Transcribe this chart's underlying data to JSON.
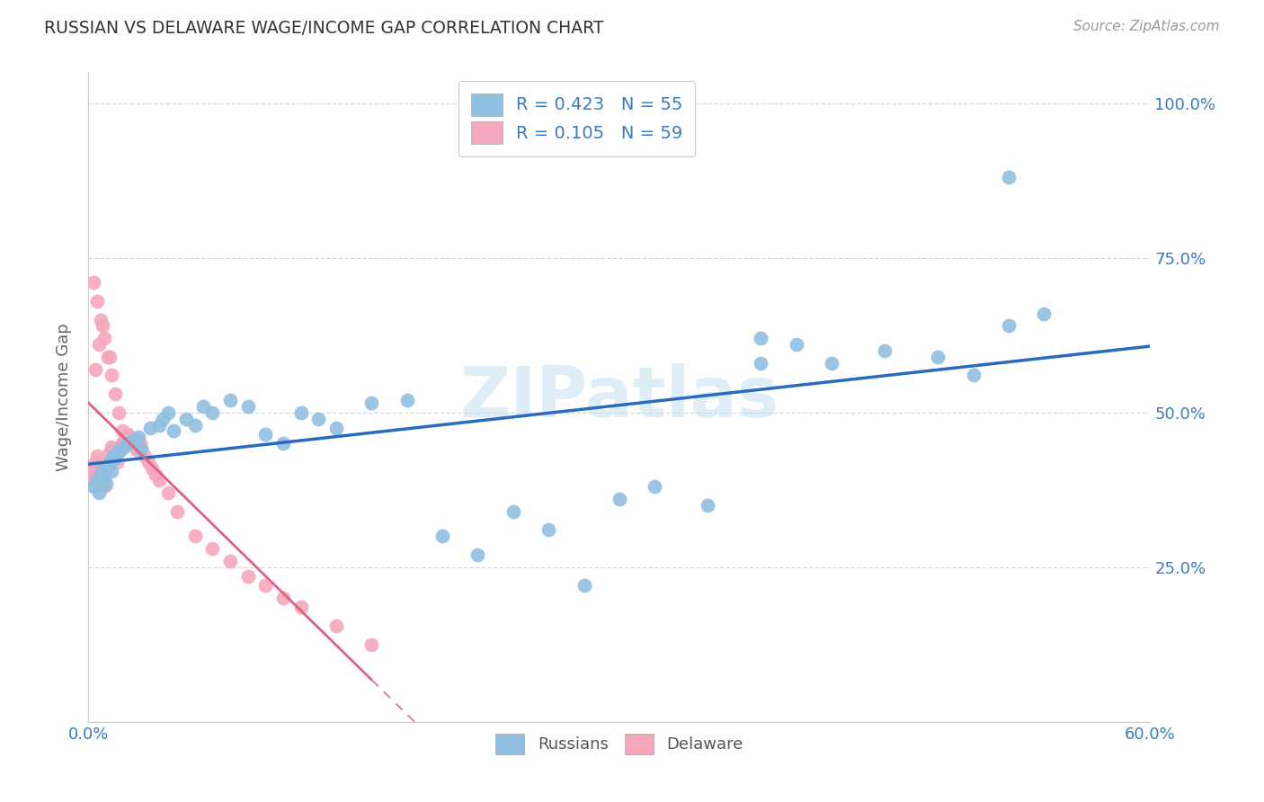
{
  "title": "RUSSIAN VS DELAWARE WAGE/INCOME GAP CORRELATION CHART",
  "source": "Source: ZipAtlas.com",
  "ylabel": "Wage/Income Gap",
  "xlim": [
    0.0,
    0.6
  ],
  "ylim": [
    0.0,
    1.05
  ],
  "xtick_positions": [
    0.0,
    0.1,
    0.2,
    0.3,
    0.4,
    0.5,
    0.6
  ],
  "xticklabels": [
    "0.0%",
    "",
    "",
    "",
    "",
    "",
    "60.0%"
  ],
  "ytick_positions": [
    0.25,
    0.5,
    0.75,
    1.0
  ],
  "ytick_labels": [
    "25.0%",
    "50.0%",
    "75.0%",
    "100.0%"
  ],
  "watermark": "ZIPatlas",
  "russians_R": 0.423,
  "russians_N": 55,
  "delaware_R": 0.105,
  "delaware_N": 59,
  "blue_color": "#90bfdf",
  "pink_color": "#f5a8bc",
  "blue_line_color": "#2a6bbf",
  "pink_line_color": "#e06080",
  "pink_dash_color": "#d09090",
  "grid_color": "#d8d8d8",
  "russians_x": [
    0.003,
    0.005,
    0.006,
    0.007,
    0.008,
    0.009,
    0.01,
    0.011,
    0.012,
    0.013,
    0.014,
    0.015,
    0.016,
    0.018,
    0.02,
    0.022,
    0.025,
    0.028,
    0.03,
    0.035,
    0.04,
    0.042,
    0.045,
    0.048,
    0.055,
    0.06,
    0.065,
    0.07,
    0.08,
    0.09,
    0.1,
    0.11,
    0.12,
    0.13,
    0.14,
    0.16,
    0.18,
    0.2,
    0.22,
    0.24,
    0.26,
    0.3,
    0.32,
    0.35,
    0.38,
    0.4,
    0.42,
    0.45,
    0.48,
    0.5,
    0.52,
    0.54,
    0.52,
    0.38,
    0.28
  ],
  "russians_y": [
    0.38,
    0.39,
    0.37,
    0.4,
    0.41,
    0.395,
    0.385,
    0.415,
    0.42,
    0.405,
    0.43,
    0.425,
    0.435,
    0.44,
    0.445,
    0.45,
    0.455,
    0.46,
    0.44,
    0.475,
    0.48,
    0.49,
    0.5,
    0.47,
    0.49,
    0.48,
    0.51,
    0.5,
    0.52,
    0.51,
    0.465,
    0.45,
    0.5,
    0.49,
    0.475,
    0.515,
    0.52,
    0.3,
    0.27,
    0.34,
    0.31,
    0.36,
    0.38,
    0.35,
    0.62,
    0.61,
    0.58,
    0.6,
    0.59,
    0.56,
    0.64,
    0.66,
    0.88,
    0.58,
    0.22
  ],
  "delaware_x": [
    0.001,
    0.002,
    0.003,
    0.004,
    0.005,
    0.006,
    0.007,
    0.008,
    0.009,
    0.01,
    0.011,
    0.012,
    0.013,
    0.014,
    0.015,
    0.016,
    0.017,
    0.018,
    0.019,
    0.02,
    0.021,
    0.022,
    0.023,
    0.024,
    0.025,
    0.026,
    0.027,
    0.028,
    0.029,
    0.03,
    0.032,
    0.034,
    0.036,
    0.038,
    0.04,
    0.045,
    0.05,
    0.06,
    0.07,
    0.08,
    0.09,
    0.1,
    0.11,
    0.12,
    0.14,
    0.16,
    0.003,
    0.005,
    0.007,
    0.009,
    0.011,
    0.013,
    0.015,
    0.017,
    0.019,
    0.004,
    0.006,
    0.008,
    0.012
  ],
  "delaware_y": [
    0.395,
    0.405,
    0.415,
    0.42,
    0.43,
    0.41,
    0.4,
    0.39,
    0.38,
    0.41,
    0.42,
    0.435,
    0.445,
    0.44,
    0.43,
    0.42,
    0.435,
    0.445,
    0.45,
    0.455,
    0.46,
    0.465,
    0.46,
    0.455,
    0.45,
    0.445,
    0.44,
    0.445,
    0.45,
    0.44,
    0.43,
    0.42,
    0.41,
    0.4,
    0.39,
    0.37,
    0.34,
    0.3,
    0.28,
    0.26,
    0.235,
    0.22,
    0.2,
    0.185,
    0.155,
    0.125,
    0.71,
    0.68,
    0.65,
    0.62,
    0.59,
    0.56,
    0.53,
    0.5,
    0.47,
    0.57,
    0.61,
    0.64,
    0.59
  ]
}
